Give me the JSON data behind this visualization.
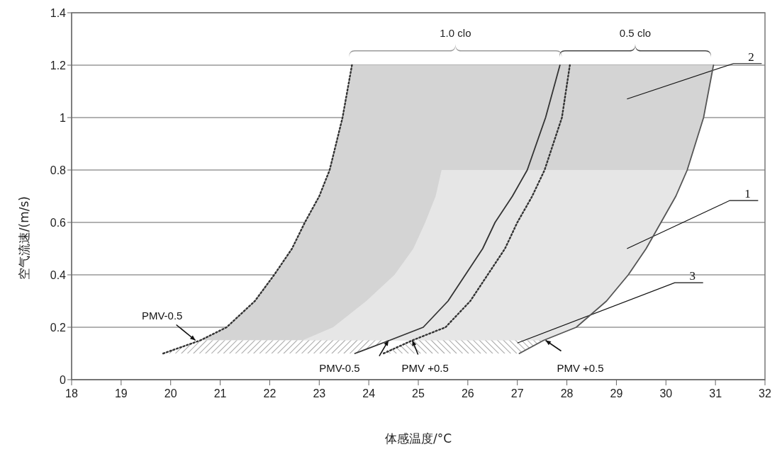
{
  "chart_data": {
    "type": "line",
    "xlabel": "体感温度/°C",
    "ylabel": "空气流速/(m/s)",
    "xlim": [
      18,
      32
    ],
    "xticks": [
      18,
      19,
      20,
      21,
      22,
      23,
      24,
      25,
      26,
      27,
      28,
      29,
      30,
      31,
      32
    ],
    "ylim": [
      0,
      1.4
    ],
    "yticks": [
      0,
      0.2,
      0.4,
      0.6,
      0.8,
      1,
      1.2,
      1.4
    ],
    "grid": "y",
    "legend": false,
    "series": [
      {
        "type": "area",
        "color": "#d4d4d4",
        "x": [
          20.6,
          21.13,
          21.7,
          22.09,
          22.45,
          22.71,
          23.0,
          23.21,
          23.47,
          23.66,
          30.96,
          30.76,
          30.43,
          30.2,
          29.9,
          29.6,
          29.24,
          28.8,
          28.19,
          27.53
        ],
        "values": [
          0.15,
          0.2,
          0.3,
          0.4,
          0.5,
          0.6,
          0.7,
          0.8,
          1.0,
          1.2,
          1.2,
          1.0,
          0.8,
          0.7,
          0.6,
          0.5,
          0.4,
          0.3,
          0.2,
          0.15
        ]
      },
      {
        "type": "area",
        "color": "#e6e6e6",
        "x": [
          22.66,
          23.28,
          23.95,
          24.52,
          24.9,
          25.14,
          25.35,
          25.47,
          30.43,
          30.2,
          29.9,
          29.6,
          29.24,
          28.8,
          28.19,
          27.53
        ],
        "values": [
          0.15,
          0.2,
          0.3,
          0.4,
          0.5,
          0.6,
          0.7,
          0.8,
          0.8,
          0.7,
          0.6,
          0.5,
          0.4,
          0.3,
          0.2,
          0.15
        ]
      },
      {
        "type": "area",
        "color": "#555555",
        "x": [
          19.85,
          20.6,
          24.42,
          23.72
        ],
        "values": [
          0.1,
          0.15,
          0.15,
          0.1
        ]
      },
      {
        "type": "area",
        "color": "#555555",
        "x": [
          24.2,
          24.88,
          27.53,
          27.04
        ],
        "values": [
          0.1,
          0.15,
          0.15,
          0.1
        ]
      },
      {
        "color": "#333333",
        "line_style": "dotted",
        "x": [
          19.85,
          20.6,
          21.13,
          21.7,
          22.09,
          22.45,
          22.71,
          23.0,
          23.21,
          23.47,
          23.66
        ],
        "values": [
          0.1,
          0.15,
          0.2,
          0.3,
          0.4,
          0.5,
          0.6,
          0.7,
          0.8,
          1.0,
          1.2
        ]
      },
      {
        "color": "#333333",
        "line_style": "solid",
        "x": [
          23.72,
          24.42,
          25.1,
          25.6,
          25.95,
          26.3,
          26.55,
          26.9,
          27.2,
          27.57,
          27.86
        ],
        "values": [
          0.1,
          0.15,
          0.2,
          0.3,
          0.4,
          0.5,
          0.6,
          0.7,
          0.8,
          1.0,
          1.2
        ]
      },
      {
        "color": "#333333",
        "line_style": "dotted",
        "x": [
          24.3,
          24.88,
          25.55,
          26.05,
          26.4,
          26.75,
          27.0,
          27.3,
          27.55,
          27.9,
          28.06
        ],
        "values": [
          0.1,
          0.15,
          0.2,
          0.3,
          0.4,
          0.5,
          0.6,
          0.7,
          0.8,
          1.0,
          1.2
        ]
      },
      {
        "color": "#555555",
        "line_style": "solid",
        "x": [
          27.04,
          27.53,
          28.19,
          28.8,
          29.24,
          29.6,
          29.9,
          30.2,
          30.43,
          30.76,
          30.96
        ],
        "values": [
          0.1,
          0.15,
          0.2,
          0.3,
          0.4,
          0.5,
          0.6,
          0.7,
          0.8,
          1.0,
          1.2
        ]
      }
    ],
    "annotations": [
      {
        "text": "1.0 clo",
        "x": 25.75,
        "y": 1.2
      },
      {
        "text": "0.5 clo",
        "x": 29.38,
        "y": 1.2
      },
      "2",
      "1",
      {
        "text": "3",
        "x": 27.0,
        "y": 0.14
      },
      {
        "text": "PMV-0.5",
        "x": 20.5,
        "y": 0.15
      },
      "PMV-0.5",
      {
        "text": "PMV +0.5",
        "x": 24.88,
        "y": 0.15
      },
      {
        "text": "PMV +0.5",
        "x": 27.57,
        "y": 0.15
      }
    ]
  }
}
